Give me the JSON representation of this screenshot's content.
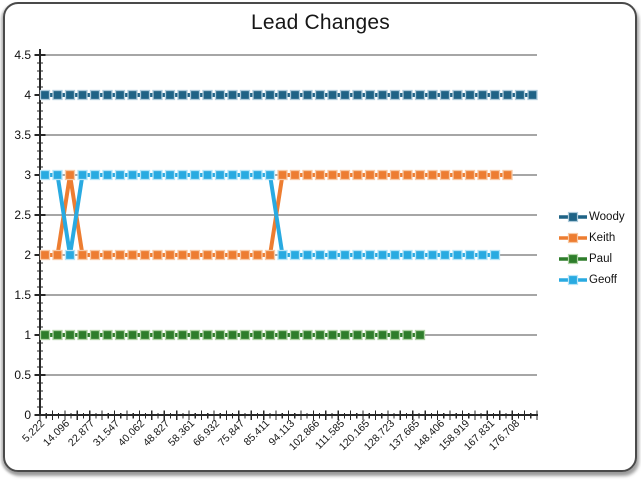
{
  "title": "Lead Changes",
  "window": {
    "background": "#ffffff",
    "border_color": "#4a4a4a",
    "shadow_color": "#9e9e9e"
  },
  "axes": {
    "grid_color": "#4d4d4d",
    "axis_color": "#262626",
    "text_color": "#161616"
  },
  "chart_data": {
    "type": "line",
    "title": "Lead Changes",
    "xlabel": "",
    "ylabel": "",
    "ylim": [
      0,
      4.5
    ],
    "y_tick_step": 0.5,
    "y_tick_labels": [
      "0",
      "0.5",
      "1",
      "1.5",
      "2",
      "2.5",
      "3",
      "3.5",
      "4",
      "4.5"
    ],
    "x_tick_labels": [
      "5.222",
      "14.096",
      "22.877",
      "31.547",
      "40.062",
      "48.827",
      "58.361",
      "66.932",
      "75.847",
      "85.411",
      "94.113",
      "102.866",
      "111.585",
      "120.165",
      "128.723",
      "137.665",
      "148.406",
      "158.919",
      "167.831",
      "176.708"
    ],
    "x_label_every_n_points": 2,
    "grid": true,
    "legend_position": "right",
    "series": [
      {
        "name": "Woody",
        "color": "#1F6386",
        "marker_edge": "#AECBDB",
        "values": [
          4,
          4,
          4,
          4,
          4,
          4,
          4,
          4,
          4,
          4,
          4,
          4,
          4,
          4,
          4,
          4,
          4,
          4,
          4,
          4,
          4,
          4,
          4,
          4,
          4,
          4,
          4,
          4,
          4,
          4,
          4,
          4,
          4,
          4,
          4,
          4,
          4,
          4,
          4,
          4
        ]
      },
      {
        "name": "Keith",
        "color": "#ED7D31",
        "marker_edge": "#F8C9A4",
        "values": [
          2,
          2,
          3,
          2,
          2,
          2,
          2,
          2,
          2,
          2,
          2,
          2,
          2,
          2,
          2,
          2,
          2,
          2,
          2,
          3,
          3,
          3,
          3,
          3,
          3,
          3,
          3,
          3,
          3,
          3,
          3,
          3,
          3,
          3,
          3,
          3,
          3,
          3
        ]
      },
      {
        "name": "Paul",
        "color": "#2E7D2B",
        "marker_edge": "#AFD3A4",
        "values": [
          1,
          1,
          1,
          1,
          1,
          1,
          1,
          1,
          1,
          1,
          1,
          1,
          1,
          1,
          1,
          1,
          1,
          1,
          1,
          1,
          1,
          1,
          1,
          1,
          1,
          1,
          1,
          1,
          1,
          1,
          1
        ]
      },
      {
        "name": "Geoff",
        "color": "#29AAE1",
        "marker_edge": "#B5E4F8",
        "values": [
          3,
          3,
          2,
          3,
          3,
          3,
          3,
          3,
          3,
          3,
          3,
          3,
          3,
          3,
          3,
          3,
          3,
          3,
          3,
          2,
          2,
          2,
          2,
          2,
          2,
          2,
          2,
          2,
          2,
          2,
          2,
          2,
          2,
          2,
          2,
          2,
          2
        ]
      }
    ]
  }
}
